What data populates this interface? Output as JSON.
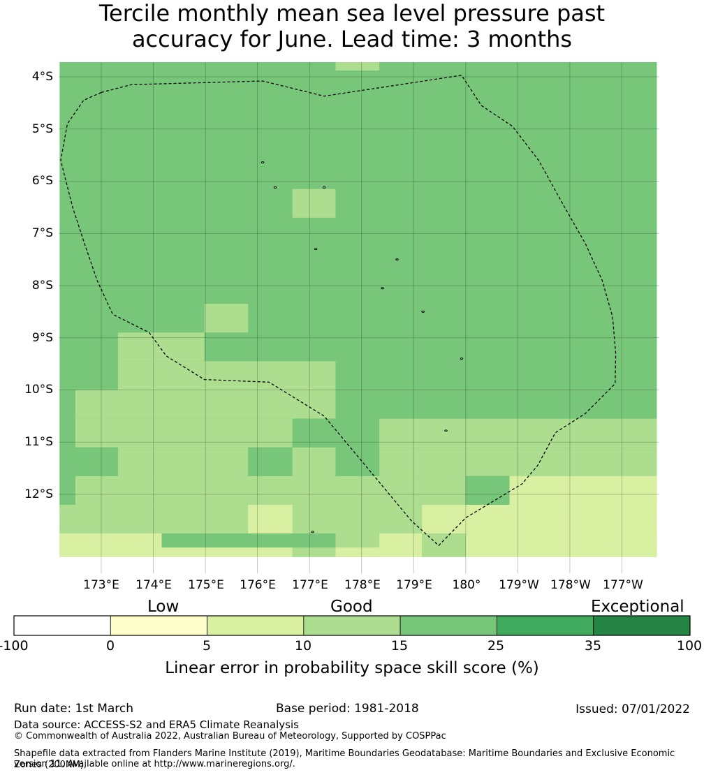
{
  "title": {
    "line1": "Tercile monthly mean sea level pressure past",
    "line2": "accuracy for June. Lead time: 3 months"
  },
  "map": {
    "latitude_labels": [
      "4°S",
      "5°S",
      "6°S",
      "7°S",
      "8°S",
      "9°S",
      "10°S",
      "11°S",
      "12°S"
    ],
    "longitude_labels": [
      "173°E",
      "174°E",
      "175°E",
      "176°E",
      "177°E",
      "178°E",
      "179°E",
      "180°",
      "179°W",
      "178°W",
      "177°W"
    ],
    "extent": {
      "lon_min_E": 172.2,
      "lon_max_E": 183.67,
      "lat_north": 3.7,
      "lat_south": 13.2
    },
    "grid_cells": [
      {
        "lon1": 172.2,
        "lon2": 183.67,
        "lat1": 3.7,
        "lat2": 13.2,
        "class": "15-25"
      },
      {
        "lon1": 177.5,
        "lon2": 178.34,
        "lat1": 3.7,
        "lat2": 3.88,
        "class": "10-15"
      },
      {
        "lon1": 176.67,
        "lon2": 177.5,
        "lat1": 6.15,
        "lat2": 6.7,
        "class": "10-15"
      },
      {
        "lon1": 174.98,
        "lon2": 175.82,
        "lat1": 8.35,
        "lat2": 8.9,
        "class": "10-15"
      },
      {
        "lon1": 173.32,
        "lon2": 174.98,
        "lat1": 8.9,
        "lat2": 9.45,
        "class": "10-15"
      },
      {
        "lon1": 173.32,
        "lon2": 177.5,
        "lat1": 9.45,
        "lat2": 10.0,
        "class": "10-15"
      },
      {
        "lon1": 172.5,
        "lon2": 177.5,
        "lat1": 10.0,
        "lat2": 10.55,
        "class": "10-15"
      },
      {
        "lon1": 172.5,
        "lon2": 176.67,
        "lat1": 10.55,
        "lat2": 11.1,
        "class": "10-15"
      },
      {
        "lon1": 178.34,
        "lon2": 183.67,
        "lat1": 10.55,
        "lat2": 11.1,
        "class": "10-15"
      },
      {
        "lon1": 173.32,
        "lon2": 175.82,
        "lat1": 11.1,
        "lat2": 11.65,
        "class": "10-15"
      },
      {
        "lon1": 176.67,
        "lon2": 177.5,
        "lat1": 11.1,
        "lat2": 11.65,
        "class": "10-15"
      },
      {
        "lon1": 178.34,
        "lon2": 183.67,
        "lat1": 11.1,
        "lat2": 11.65,
        "class": "10-15"
      },
      {
        "lon1": 172.5,
        "lon2": 180.0,
        "lat1": 11.65,
        "lat2": 12.2,
        "class": "10-15"
      },
      {
        "lon1": 180.84,
        "lon2": 183.67,
        "lat1": 11.65,
        "lat2": 12.2,
        "class": "5-10"
      },
      {
        "lon1": 172.2,
        "lon2": 183.67,
        "lat1": 12.2,
        "lat2": 12.75,
        "class": "10-15"
      },
      {
        "lon1": 175.82,
        "lon2": 176.67,
        "lat1": 12.2,
        "lat2": 12.75,
        "class": "5-10"
      },
      {
        "lon1": 179.16,
        "lon2": 183.67,
        "lat1": 12.2,
        "lat2": 12.75,
        "class": "5-10"
      },
      {
        "lon1": 172.2,
        "lon2": 174.16,
        "lat1": 12.75,
        "lat2": 13.2,
        "class": "5-10"
      },
      {
        "lon1": 176.67,
        "lon2": 177.5,
        "lat1": 13.02,
        "lat2": 13.2,
        "class": "10-15"
      },
      {
        "lon1": 177.5,
        "lon2": 178.34,
        "lat1": 12.75,
        "lat2": 13.2,
        "class": "10-15"
      },
      {
        "lon1": 178.34,
        "lon2": 179.16,
        "lat1": 12.75,
        "lat2": 13.2,
        "class": "5-10"
      },
      {
        "lon1": 179.16,
        "lon2": 180.0,
        "lat1": 12.75,
        "lat2": 13.2,
        "class": "10-15"
      },
      {
        "lon1": 180.0,
        "lon2": 183.67,
        "lat1": 12.75,
        "lat2": 13.2,
        "class": "5-10"
      },
      {
        "lon1": 174.16,
        "lon2": 176.67,
        "lat1": 13.02,
        "lat2": 13.2,
        "class": "5-10"
      },
      {
        "lon1": 177.5,
        "lon2": 178.34,
        "lat1": 13.02,
        "lat2": 13.2,
        "class": "5-10"
      },
      {
        "lon1": 172.2,
        "lon2": 172.5,
        "lat1": 10.0,
        "lat2": 12.2,
        "class": "15-25"
      },
      {
        "lon1": 172.5,
        "lon2": 173.32,
        "lat1": 11.1,
        "lat2": 11.65,
        "class": "15-25"
      },
      {
        "lon1": 176.67,
        "lon2": 177.5,
        "lat1": 10.55,
        "lat2": 11.1,
        "class": "15-25"
      },
      {
        "lon1": 175.82,
        "lon2": 176.67,
        "lat1": 11.1,
        "lat2": 11.65,
        "class": "15-25"
      },
      {
        "lon1": 177.5,
        "lon2": 178.34,
        "lat1": 11.1,
        "lat2": 11.65,
        "class": "15-25"
      },
      {
        "lon1": 180.0,
        "lon2": 180.84,
        "lat1": 11.65,
        "lat2": 12.2,
        "class": "15-25"
      }
    ],
    "eez_boundary": [
      [
        173.0,
        4.3
      ],
      [
        173.58,
        4.15
      ],
      [
        176.1,
        4.08
      ],
      [
        177.28,
        4.37
      ],
      [
        179.92,
        3.97
      ],
      [
        180.3,
        4.55
      ],
      [
        180.9,
        4.95
      ],
      [
        181.4,
        5.6
      ],
      [
        181.9,
        6.5
      ],
      [
        182.3,
        7.2
      ],
      [
        182.62,
        7.9
      ],
      [
        182.82,
        8.6
      ],
      [
        182.88,
        9.3
      ],
      [
        182.87,
        9.88
      ],
      [
        182.3,
        10.45
      ],
      [
        181.72,
        10.82
      ],
      [
        181.38,
        11.45
      ],
      [
        181.08,
        11.8
      ],
      [
        180.0,
        12.45
      ],
      [
        179.48,
        12.98
      ],
      [
        178.95,
        12.5
      ],
      [
        178.2,
        11.6
      ],
      [
        177.28,
        10.5
      ],
      [
        176.22,
        9.85
      ],
      [
        174.98,
        9.8
      ],
      [
        174.25,
        9.35
      ],
      [
        173.92,
        8.9
      ],
      [
        173.22,
        8.55
      ],
      [
        172.92,
        7.9
      ],
      [
        172.68,
        7.2
      ],
      [
        172.45,
        6.5
      ],
      [
        172.22,
        5.6
      ],
      [
        172.35,
        4.9
      ],
      [
        172.66,
        4.45
      ],
      [
        173.0,
        4.3
      ]
    ],
    "islands": [
      [
        176.1,
        5.64
      ],
      [
        176.34,
        6.12
      ],
      [
        177.28,
        6.12
      ],
      [
        177.12,
        7.3
      ],
      [
        178.68,
        7.5
      ],
      [
        178.4,
        8.05
      ],
      [
        179.18,
        8.5
      ],
      [
        179.92,
        9.4
      ],
      [
        179.62,
        10.78
      ],
      [
        177.06,
        12.72
      ]
    ]
  },
  "colorbar": {
    "category_labels": {
      "low": "Low",
      "good": "Good",
      "exceptional": "Exceptional"
    },
    "bins": [
      {
        "from": -100,
        "to": 0,
        "color": "#ffffff"
      },
      {
        "from": 0,
        "to": 5,
        "color": "#ffffcc"
      },
      {
        "from": 5,
        "to": 10,
        "color": "#d9f0a3"
      },
      {
        "from": 10,
        "to": 15,
        "color": "#addd8e"
      },
      {
        "from": 15,
        "to": 25,
        "color": "#78c679"
      },
      {
        "from": 25,
        "to": 35,
        "color": "#41ab5d"
      },
      {
        "from": 35,
        "to": 100,
        "color": "#238443"
      }
    ],
    "ticks": [
      "-100",
      "0",
      "5",
      "10",
      "15",
      "25",
      "35",
      "100"
    ],
    "title": "Linear error in probability space skill score (%)"
  },
  "class_colors": {
    "5-10": "#d9f0a3",
    "10-15": "#addd8e",
    "15-25": "#78c679"
  },
  "footer": {
    "run_date": "Run date: 1st March",
    "base_period": "Base period: 1981-2018",
    "issued": "Issued: 07/01/2022",
    "data_source": "Data source: ACCESS-S2 and ERA5 Climate Reanalysis",
    "copyright": "© Commonwealth of Australia 2022, Australian Bureau of Meteorology, Supported by COSPPac",
    "shapefile_line1": "Shapefile data extracted from Flanders Marine Institute (2019), Maritime Boundaries Geodatabase: Maritime Boundaries and Exclusive Economic Zones (200NM),",
    "shapefile_line2": "version 11. Available online at http://www.marineregions.org/."
  }
}
